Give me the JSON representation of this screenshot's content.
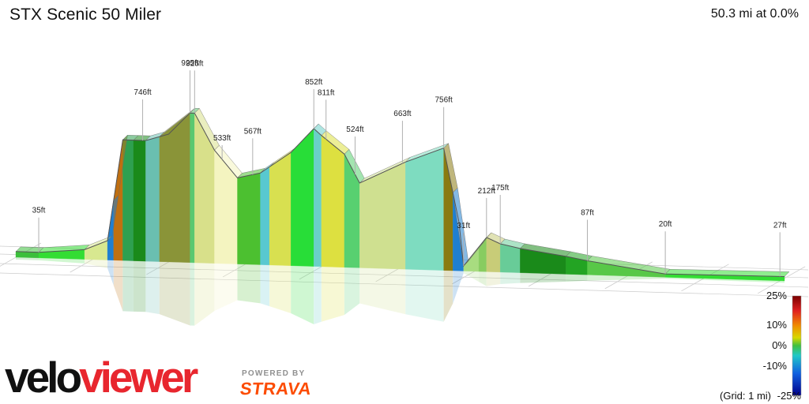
{
  "title": "STX Scenic 50 Miler",
  "summary": "50.3 mi at 0.0%",
  "branding": {
    "logo_part1": "velo",
    "logo_part2": "viewer",
    "powered_by": "POWERED BY",
    "strava": "STRAVA"
  },
  "colors": {
    "logo_dark": "#111111",
    "logo_red": "#e8262e",
    "strava_orange": "#fc4c02",
    "grid": "#cccccc"
  },
  "legend": {
    "labels": [
      "25%",
      "10%",
      "0%",
      "-10%",
      "-25%"
    ],
    "grid_note": "(Grid: 1 mi)",
    "gradient_colors": [
      "#7a0000",
      "#e02020",
      "#f08c00",
      "#d8d800",
      "#40c040",
      "#20c8c8",
      "#1060e0",
      "#00008a"
    ]
  },
  "chart_data": {
    "type": "area",
    "title": "STX Scenic 50 Miler",
    "distance_unit": "mi",
    "elevation_unit": "ft",
    "total_distance": 50.3,
    "average_grade_percent": 0.0,
    "grade_range_percent": [
      -25,
      25
    ],
    "grid_spacing_mi": 1,
    "elevation_labels": [
      "35ft",
      "746ft",
      "925ft",
      "925ft",
      "533ft",
      "567ft",
      "852ft",
      "811ft",
      "524ft",
      "663ft",
      "756ft",
      "31ft",
      "212ft",
      "175ft",
      "87ft",
      "20ft",
      "27ft"
    ],
    "profile": [
      {
        "d": 0.0,
        "e": 35
      },
      {
        "d": 1.5,
        "e": 35
      },
      {
        "d": 4.5,
        "e": 60
      },
      {
        "d": 6.0,
        "e": 120
      },
      {
        "d": 7.0,
        "e": 746
      },
      {
        "d": 8.5,
        "e": 746
      },
      {
        "d": 10.0,
        "e": 790
      },
      {
        "d": 11.4,
        "e": 925
      },
      {
        "d": 11.7,
        "e": 925
      },
      {
        "d": 13.0,
        "e": 700
      },
      {
        "d": 14.5,
        "e": 533
      },
      {
        "d": 16.0,
        "e": 567
      },
      {
        "d": 18.0,
        "e": 700
      },
      {
        "d": 19.5,
        "e": 852
      },
      {
        "d": 20.0,
        "e": 811
      },
      {
        "d": 21.5,
        "e": 700
      },
      {
        "d": 22.5,
        "e": 524
      },
      {
        "d": 25.5,
        "e": 663
      },
      {
        "d": 28.0,
        "e": 756
      },
      {
        "d": 29.0,
        "e": 300
      },
      {
        "d": 29.3,
        "e": 31
      },
      {
        "d": 30.8,
        "e": 212
      },
      {
        "d": 31.7,
        "e": 175
      },
      {
        "d": 33.0,
        "e": 150
      },
      {
        "d": 36.0,
        "e": 110
      },
      {
        "d": 37.4,
        "e": 87
      },
      {
        "d": 42.5,
        "e": 20
      },
      {
        "d": 50.3,
        "e": 27
      }
    ],
    "segments": [
      {
        "from": 0.0,
        "to": 1.5,
        "color": "#3bbf3b"
      },
      {
        "from": 1.5,
        "to": 4.5,
        "color": "#33dd33"
      },
      {
        "from": 4.5,
        "to": 6.0,
        "color": "#d8e890"
      },
      {
        "from": 6.0,
        "to": 6.4,
        "color": "#1f7fd0"
      },
      {
        "from": 6.4,
        "to": 7.0,
        "color": "#c07010"
      },
      {
        "from": 7.0,
        "to": 7.7,
        "color": "#2ea050"
      },
      {
        "from": 7.7,
        "to": 8.5,
        "color": "#1a8a1a"
      },
      {
        "from": 8.5,
        "to": 9.4,
        "color": "#6abfb0"
      },
      {
        "from": 9.4,
        "to": 11.4,
        "color": "#8a9438"
      },
      {
        "from": 11.4,
        "to": 11.7,
        "color": "#5ac870"
      },
      {
        "from": 11.7,
        "to": 13.0,
        "color": "#d8e08a"
      },
      {
        "from": 13.0,
        "to": 14.5,
        "color": "#f4f4c0"
      },
      {
        "from": 14.5,
        "to": 16.0,
        "color": "#4cc030"
      },
      {
        "from": 16.0,
        "to": 16.6,
        "color": "#58c8d0"
      },
      {
        "from": 16.6,
        "to": 18.0,
        "color": "#d8e050"
      },
      {
        "from": 18.0,
        "to": 19.5,
        "color": "#28dd38"
      },
      {
        "from": 19.5,
        "to": 20.0,
        "color": "#6ad0c8"
      },
      {
        "from": 20.0,
        "to": 21.5,
        "color": "#dde040"
      },
      {
        "from": 21.5,
        "to": 22.5,
        "color": "#58d070"
      },
      {
        "from": 22.5,
        "to": 25.5,
        "color": "#cfe090"
      },
      {
        "from": 25.5,
        "to": 28.0,
        "color": "#7edcc0"
      },
      {
        "from": 28.0,
        "to": 28.6,
        "color": "#8a7a10"
      },
      {
        "from": 28.6,
        "to": 29.3,
        "color": "#1f7fd0"
      },
      {
        "from": 29.3,
        "to": 30.3,
        "color": "#a8dc80"
      },
      {
        "from": 30.3,
        "to": 30.8,
        "color": "#88cc60"
      },
      {
        "from": 30.8,
        "to": 31.7,
        "color": "#c8cc78"
      },
      {
        "from": 31.7,
        "to": 33.0,
        "color": "#68cc98"
      },
      {
        "from": 33.0,
        "to": 36.0,
        "color": "#1a8a1a"
      },
      {
        "from": 36.0,
        "to": 37.4,
        "color": "#23a423"
      },
      {
        "from": 37.4,
        "to": 42.5,
        "color": "#58c848"
      },
      {
        "from": 42.5,
        "to": 50.3,
        "color": "#33dd33"
      }
    ]
  }
}
